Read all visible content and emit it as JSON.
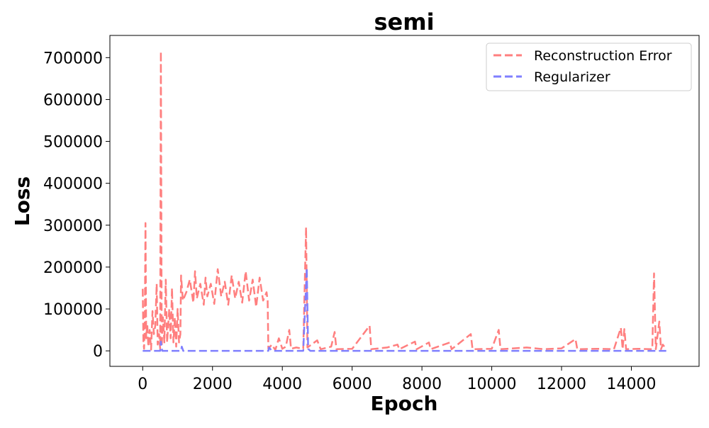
{
  "chart_data": {
    "type": "line",
    "title": "semi",
    "xlabel": "Epoch",
    "ylabel": "Loss",
    "xlim": [
      -940,
      15940
    ],
    "ylim": [
      -37000,
      753000
    ],
    "xticks": [
      0,
      2000,
      4000,
      6000,
      8000,
      10000,
      12000,
      14000
    ],
    "xtick_labels": [
      "0",
      "2000",
      "4000",
      "6000",
      "8000",
      "10000",
      "12000",
      "14000"
    ],
    "yticks": [
      0,
      100000,
      200000,
      300000,
      400000,
      500000,
      600000,
      700000
    ],
    "ytick_labels": [
      "0",
      "100000",
      "200000",
      "300000",
      "400000",
      "500000",
      "600000",
      "700000"
    ],
    "grid": false,
    "legend_position": "top-right",
    "series": [
      {
        "name": "Reconstruction Error",
        "color": "#ff7f7f",
        "dash": "dashed",
        "points": [
          [
            0,
            148000
          ],
          [
            20,
            20000
          ],
          [
            40,
            5000
          ],
          [
            60,
            60000
          ],
          [
            80,
            305000
          ],
          [
            100,
            30000
          ],
          [
            130,
            65000
          ],
          [
            160,
            10000
          ],
          [
            200,
            50000
          ],
          [
            240,
            3000
          ],
          [
            280,
            95000
          ],
          [
            320,
            40000
          ],
          [
            360,
            60000
          ],
          [
            400,
            160000
          ],
          [
            430,
            15000
          ],
          [
            470,
            40000
          ],
          [
            500,
            5000
          ],
          [
            520,
            715000
          ],
          [
            545,
            10000
          ],
          [
            580,
            80000
          ],
          [
            620,
            20000
          ],
          [
            660,
            170000
          ],
          [
            700,
            20000
          ],
          [
            760,
            100000
          ],
          [
            800,
            30000
          ],
          [
            840,
            150000
          ],
          [
            880,
            20000
          ],
          [
            920,
            80000
          ],
          [
            960,
            10000
          ],
          [
            1000,
            100000
          ],
          [
            1040,
            20000
          ],
          [
            1080,
            40000
          ],
          [
            1100,
            180000
          ],
          [
            1150,
            120000
          ],
          [
            1250,
            140000
          ],
          [
            1350,
            170000
          ],
          [
            1450,
            115000
          ],
          [
            1500,
            190000
          ],
          [
            1550,
            125000
          ],
          [
            1650,
            160000
          ],
          [
            1750,
            110000
          ],
          [
            1800,
            175000
          ],
          [
            1850,
            130000
          ],
          [
            1950,
            160000
          ],
          [
            2050,
            112000
          ],
          [
            2150,
            195000
          ],
          [
            2250,
            130000
          ],
          [
            2350,
            165000
          ],
          [
            2450,
            110000
          ],
          [
            2550,
            180000
          ],
          [
            2650,
            125000
          ],
          [
            2750,
            165000
          ],
          [
            2850,
            115000
          ],
          [
            2950,
            190000
          ],
          [
            3050,
            120000
          ],
          [
            3150,
            170000
          ],
          [
            3250,
            105000
          ],
          [
            3350,
            175000
          ],
          [
            3450,
            120000
          ],
          [
            3550,
            140000
          ],
          [
            3580,
            120000
          ],
          [
            3600,
            5000
          ],
          [
            3700,
            15000
          ],
          [
            3800,
            2000
          ],
          [
            3900,
            30000
          ],
          [
            4000,
            5000
          ],
          [
            4100,
            10000
          ],
          [
            4200,
            50000
          ],
          [
            4250,
            5000
          ],
          [
            4400,
            8000
          ],
          [
            4600,
            5000
          ],
          [
            4680,
            295000
          ],
          [
            4720,
            8000
          ],
          [
            5000,
            25000
          ],
          [
            5100,
            4000
          ],
          [
            5400,
            10000
          ],
          [
            5500,
            45000
          ],
          [
            5550,
            4000
          ],
          [
            6000,
            5000
          ],
          [
            6500,
            60000
          ],
          [
            6550,
            4000
          ],
          [
            7000,
            8000
          ],
          [
            7300,
            15000
          ],
          [
            7350,
            4000
          ],
          [
            7800,
            22000
          ],
          [
            7850,
            4000
          ],
          [
            8200,
            20000
          ],
          [
            8250,
            4000
          ],
          [
            8800,
            20000
          ],
          [
            8850,
            4000
          ],
          [
            9400,
            40000
          ],
          [
            9450,
            4000
          ],
          [
            10000,
            5000
          ],
          [
            10200,
            50000
          ],
          [
            10250,
            4000
          ],
          [
            11000,
            8000
          ],
          [
            11500,
            4000
          ],
          [
            12000,
            6000
          ],
          [
            12400,
            28000
          ],
          [
            12450,
            4000
          ],
          [
            13000,
            5000
          ],
          [
            13500,
            4000
          ],
          [
            13700,
            55000
          ],
          [
            13750,
            4000
          ],
          [
            13800,
            52000
          ],
          [
            13850,
            4000
          ],
          [
            14200,
            5000
          ],
          [
            14600,
            4000
          ],
          [
            14650,
            185000
          ],
          [
            14700,
            4000
          ],
          [
            14800,
            70000
          ],
          [
            14850,
            4000
          ],
          [
            14900,
            15000
          ],
          [
            15000,
            4000
          ]
        ]
      },
      {
        "name": "Regularizer",
        "color": "#7f7fff",
        "dash": "dashed",
        "points": [
          [
            0,
            0
          ],
          [
            500,
            0
          ],
          [
            520,
            22000
          ],
          [
            560,
            0
          ],
          [
            1100,
            0
          ],
          [
            1120,
            10000
          ],
          [
            1160,
            0
          ],
          [
            3600,
            0
          ],
          [
            3620,
            8000
          ],
          [
            3700,
            0
          ],
          [
            4600,
            0
          ],
          [
            4700,
            198000
          ],
          [
            4740,
            5000
          ],
          [
            4800,
            0
          ],
          [
            15000,
            0
          ]
        ]
      }
    ]
  }
}
